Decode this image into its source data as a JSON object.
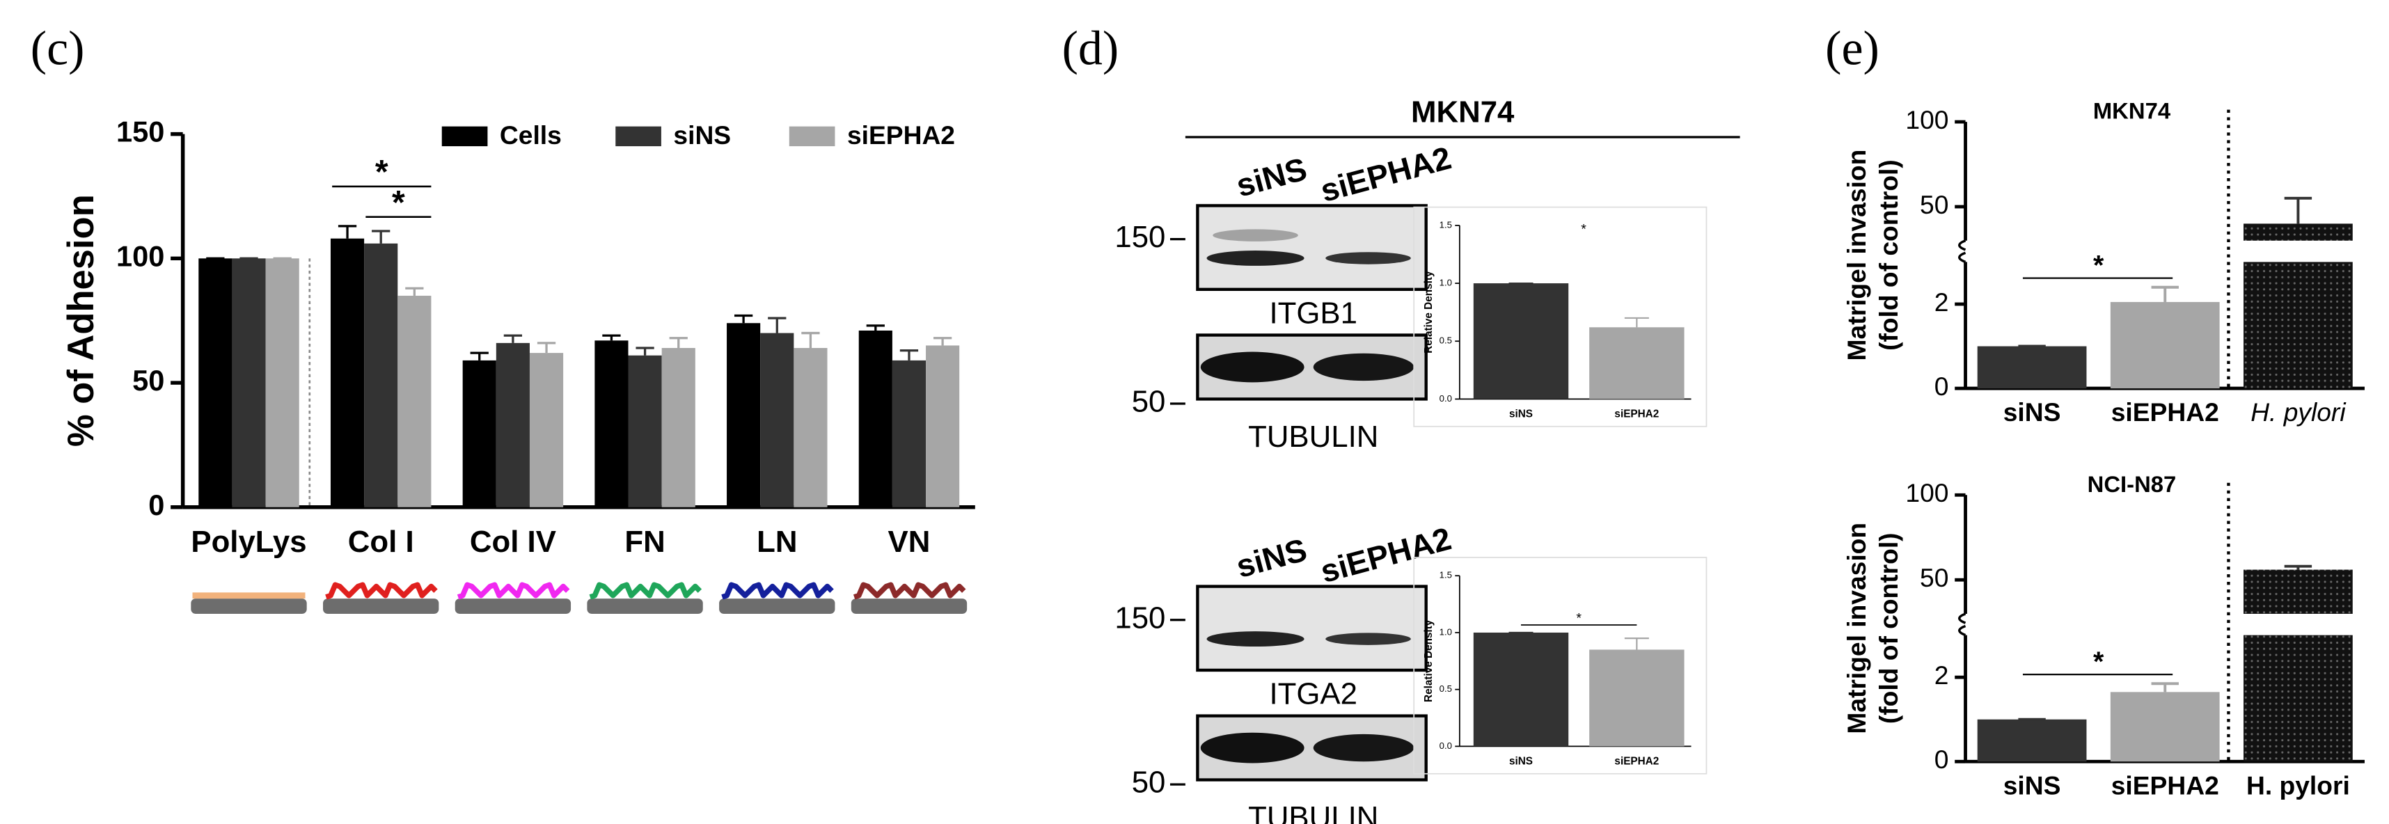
{
  "panels": [
    "(c)",
    "(d)",
    "(e)"
  ],
  "blots": {
    "cell_line": "MKN74",
    "groups": [
      {
        "lanes": [
          "siNS",
          "siEPHA2"
        ],
        "bands": [
          {
            "marker": 150,
            "label": "ITGB1"
          },
          {
            "marker": 50,
            "label": "TUBULIN"
          }
        ]
      },
      {
        "lanes": [
          "siNS",
          "siEPHA2"
        ],
        "bands": [
          {
            "marker": 150,
            "label": "ITGA2"
          },
          {
            "marker": 50,
            "label": "TUBULIN"
          }
        ]
      }
    ]
  },
  "chart_data": [
    {
      "type": "grouped_bar",
      "ylabel": "% of Adhesion",
      "categories": [
        "PolyLys",
        "Col I",
        "Col IV",
        "FN",
        "LN",
        "VN"
      ],
      "series": [
        {
          "name": "Cells",
          "color": "#000000",
          "values": [
            100,
            108,
            59,
            67,
            74,
            71
          ],
          "errors": [
            0,
            5,
            3,
            2,
            3,
            2
          ]
        },
        {
          "name": "siNS",
          "color": "#333333",
          "values": [
            100,
            106,
            66,
            61,
            70,
            59
          ],
          "errors": [
            0,
            5,
            3,
            3,
            6,
            4
          ]
        },
        {
          "name": "siEPHA2",
          "color": "#a6a6a6",
          "values": [
            100,
            85,
            62,
            64,
            64,
            65
          ],
          "errors": [
            0,
            3,
            4,
            4,
            6,
            3
          ]
        }
      ],
      "ylim": [
        0,
        150
      ],
      "yticks": [
        0,
        50,
        100,
        150
      ],
      "substrate_colors": [
        "#f2b27c",
        "#e0201e",
        "#f028f0",
        "#1fa65a",
        "#14209c",
        "#8c2a2a"
      ],
      "annotations": [
        "*",
        "*"
      ]
    },
    {
      "type": "bar",
      "ylabel": "Relative Density",
      "categories": [
        "siNS",
        "siEPHA2"
      ],
      "values": [
        1,
        0.62
      ],
      "errors": [
        0,
        0.08
      ],
      "colors": [
        "#333333",
        "#a6a6a6"
      ],
      "ylim": [
        0,
        1.5
      ],
      "yticks": [
        {
          "value": 0,
          "label": "0.0"
        },
        {
          "value": 0.5,
          "label": "0.5"
        },
        {
          "value": 1,
          "label": "1.0"
        },
        {
          "value": 1.5,
          "label": "1.5"
        }
      ],
      "annotations": [
        "*"
      ],
      "annotation_line": false
    },
    {
      "type": "bar",
      "ylabel": "Relative Density",
      "categories": [
        "siNS",
        "siEPHA2"
      ],
      "values": [
        1,
        0.85
      ],
      "errors": [
        0,
        0.1
      ],
      "colors": [
        "#333333",
        "#a6a6a6"
      ],
      "ylim": [
        0,
        1.5
      ],
      "yticks": [
        {
          "value": 0,
          "label": "0.0"
        },
        {
          "value": 0.5,
          "label": "0.5"
        },
        {
          "value": 1,
          "label": "1.0"
        },
        {
          "value": 1.5,
          "label": "1.5"
        }
      ],
      "annotations": [
        "*"
      ],
      "annotation_line": true
    },
    {
      "type": "broken_bar",
      "title": "MKN74",
      "ylabel": [
        "Matrigel invasion",
        "(fold of control)"
      ],
      "categories": [
        "siNS",
        "siEPHA2",
        "H. pylori"
      ],
      "italic_categories": [
        false,
        false,
        true
      ],
      "values": [
        1,
        2.05,
        40
      ],
      "errors": [
        0,
        0.35,
        15
      ],
      "colors": [
        "#333333",
        "#a6a6a6",
        "#111111"
      ],
      "ylim": [
        0,
        100
      ],
      "axis_break": [
        3,
        30
      ],
      "yticks": [
        0,
        2,
        50,
        100
      ],
      "annotations": [
        "*"
      ]
    },
    {
      "type": "broken_bar",
      "title": "NCI-N87",
      "ylabel": [
        "Matrigel invasion",
        "(fold of control)"
      ],
      "categories": [
        "siNS",
        "siEPHA2",
        "H. pylori"
      ],
      "italic_categories": [
        false,
        false,
        false
      ],
      "values": [
        1,
        1.65,
        56
      ],
      "errors": [
        0,
        0.2,
        2
      ],
      "colors": [
        "#333333",
        "#a6a6a6",
        "#111111"
      ],
      "ylim": [
        0,
        100
      ],
      "axis_break": [
        3,
        30
      ],
      "yticks": [
        0,
        2,
        50,
        100
      ],
      "annotations": [
        "*"
      ]
    }
  ]
}
